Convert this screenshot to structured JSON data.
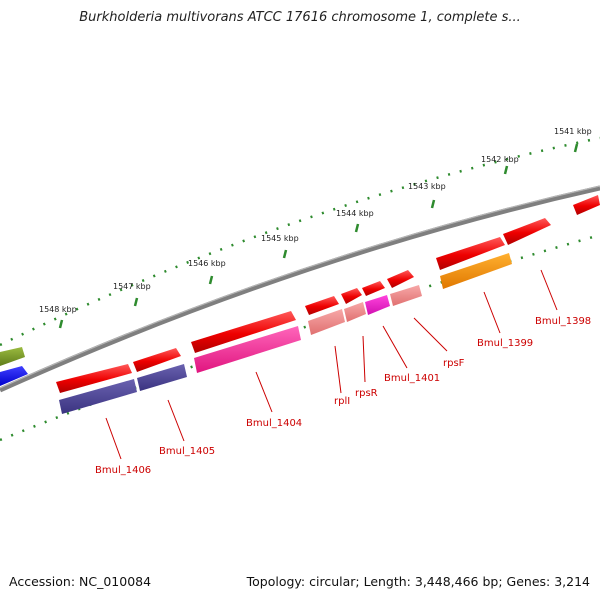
{
  "title": "Burkholderia multivorans ATCC 17616 chromosome 1, complete s...",
  "footer": {
    "accession": "Accession: NC_010084",
    "stats": "Topology: circular; Length: 3,448,466 bp; Genes: 3,214"
  },
  "scale_labels": [
    "1541 kbp",
    "1542 kbp",
    "1543 kbp",
    "1544 kbp",
    "1545 kbp",
    "1546 kbp",
    "1547 kbp",
    "1548 kbp"
  ],
  "gene_labels": [
    "Bmul_1398",
    "Bmul_1399",
    "rpsF",
    "Bmul_1401",
    "rpsR",
    "rplI",
    "Bmul_1404",
    "Bmul_1405",
    "Bmul_1406"
  ],
  "colors": {
    "backbone": "#7f7f7f",
    "gene_forward": "#ff0000",
    "cds_pink": "#ff3399",
    "cds_navy": "#4b4196",
    "rna_salmon": "#f08a8a",
    "cds_orange": "#ff9a00",
    "olive": "#7a9a2a",
    "blue": "#0000ff",
    "scale_dots": "#2e8b2e",
    "label": "#cc0000"
  }
}
